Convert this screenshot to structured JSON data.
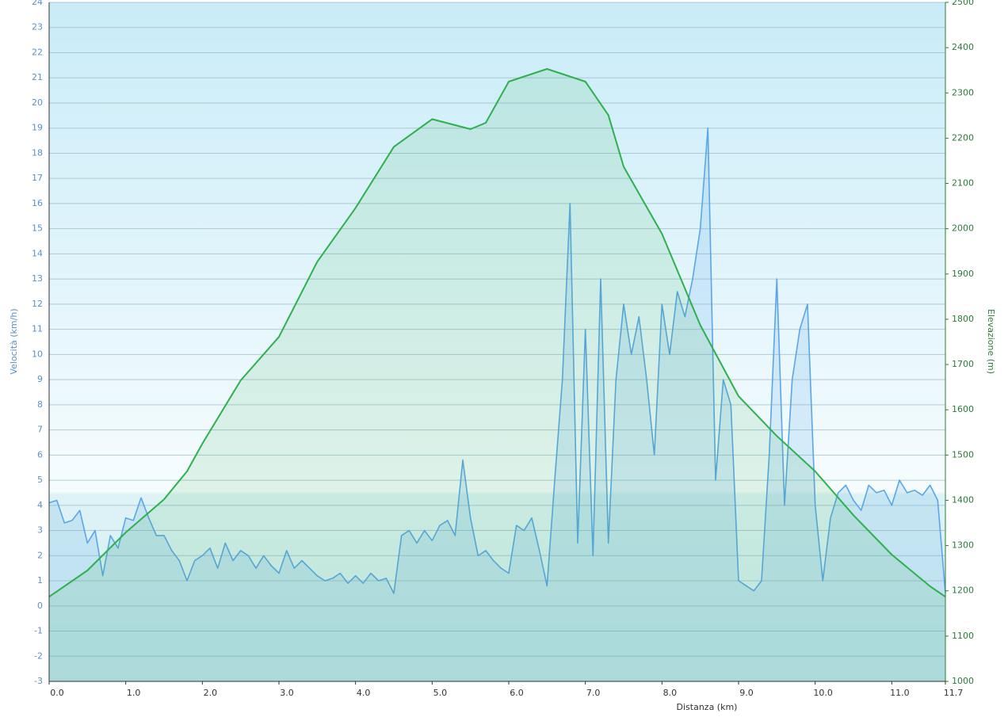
{
  "chart_data": {
    "type": "line",
    "xlabel": "Distanza  (km)",
    "ylabel": "Velocità (km/h)",
    "y2label": "Elevazione (m)",
    "xlim": [
      0,
      11.7
    ],
    "xticks": [
      {
        "value": 0,
        "label": "0.0"
      },
      {
        "value": 1,
        "label": "1.0"
      },
      {
        "value": 2,
        "label": "2.0"
      },
      {
        "value": 3,
        "label": "3.0"
      },
      {
        "value": 4,
        "label": "4.0"
      },
      {
        "value": 5,
        "label": "5.0"
      },
      {
        "value": 6,
        "label": "6.0"
      },
      {
        "value": 7,
        "label": "7.0"
      },
      {
        "value": 8,
        "label": "8.0"
      },
      {
        "value": 9,
        "label": "9.0"
      },
      {
        "value": 10,
        "label": "10.0"
      },
      {
        "value": 11,
        "label": "11.0"
      },
      11.7
    ],
    "ylim": [
      -3,
      24
    ],
    "yticks": [
      -3,
      -2,
      -1,
      0,
      1,
      2,
      3,
      4,
      5,
      6,
      7,
      8,
      9,
      10,
      11,
      12,
      13,
      14,
      15,
      16,
      17,
      18,
      19,
      20,
      21,
      22,
      23,
      24
    ],
    "y2lim": [
      1000,
      2500
    ],
    "y2ticks": [
      1000,
      1100,
      1200,
      1300,
      1400,
      1500,
      1600,
      1700,
      1800,
      1900,
      2000,
      2100,
      2200,
      2300,
      2400,
      2500
    ],
    "grid": true,
    "series": [
      {
        "color": "#5aa6e8",
        "x": [
          0.0,
          0.1,
          0.2,
          0.3,
          0.4,
          0.5,
          0.6,
          0.7,
          0.8,
          0.9,
          1.0,
          1.1,
          1.2,
          1.3,
          1.4,
          1.5,
          1.6,
          1.7,
          1.8,
          1.9,
          2.0,
          2.1,
          2.2,
          2.3,
          2.4,
          2.5,
          2.6,
          2.7,
          2.8,
          2.9,
          3.0,
          3.1,
          3.2,
          3.3,
          3.4,
          3.5,
          3.6,
          3.7,
          3.8,
          3.9,
          4.0,
          4.1,
          4.2,
          4.3,
          4.4,
          4.5,
          4.6,
          4.7,
          4.8,
          4.9,
          5.0,
          5.1,
          5.2,
          5.3,
          5.4,
          5.5,
          5.6,
          5.7,
          5.8,
          5.9,
          6.0,
          6.1,
          6.2,
          6.3,
          6.4,
          6.5,
          6.6,
          6.7,
          6.8,
          6.9,
          7.0,
          7.1,
          7.2,
          7.3,
          7.4,
          7.5,
          7.6,
          7.7,
          7.8,
          7.9,
          8.0,
          8.1,
          8.2,
          8.3,
          8.4,
          8.5,
          8.6,
          8.7,
          8.8,
          8.9,
          9.0,
          9.1,
          9.2,
          9.3,
          9.4,
          9.5,
          9.6,
          9.7,
          9.8,
          9.9,
          10.0,
          10.1,
          10.2,
          10.3,
          10.4,
          10.5,
          10.6,
          10.7,
          10.8,
          10.9,
          11.0,
          11.1,
          11.2,
          11.3,
          11.4,
          11.5,
          11.6,
          11.7
        ],
        "values": [
          4.1,
          4.2,
          3.3,
          3.4,
          3.8,
          2.5,
          3.0,
          1.2,
          2.8,
          2.3,
          3.5,
          3.4,
          4.3,
          3.5,
          2.8,
          2.8,
          2.2,
          1.8,
          1.0,
          1.8,
          2.0,
          2.3,
          1.5,
          2.5,
          1.8,
          2.2,
          2.0,
          1.5,
          2.0,
          1.6,
          1.3,
          2.2,
          1.5,
          1.8,
          1.5,
          1.2,
          1.0,
          1.1,
          1.3,
          0.9,
          1.2,
          0.9,
          1.3,
          1.0,
          1.1,
          0.5,
          2.8,
          3.0,
          2.5,
          3.0,
          2.6,
          3.2,
          3.4,
          2.8,
          5.8,
          3.5,
          2.0,
          2.2,
          1.8,
          1.5,
          1.3,
          3.2,
          3.0,
          3.5,
          2.2,
          0.8,
          5.0,
          9.0,
          16.0,
          2.5,
          11.0,
          2.0,
          13.0,
          2.5,
          9.0,
          12.0,
          10.0,
          11.5,
          9.0,
          6.0,
          12.0,
          10.0,
          12.5,
          11.5,
          13.0,
          15.0,
          19.0,
          5.0,
          9.0,
          8.0,
          1.0,
          0.8,
          0.6,
          1.0,
          6.0,
          13.0,
          4.0,
          9.0,
          11.0,
          12.0,
          4.0,
          1.0,
          3.5,
          4.5,
          4.8,
          4.2,
          3.8,
          4.8,
          4.5,
          4.6,
          4.0,
          5.0,
          4.5,
          4.6,
          4.4,
          4.8,
          4.2,
          0.5
        ]
      },
      {
        "color": "#2eb04c",
        "axis": "y2",
        "x": [
          0,
          0.5,
          1.0,
          1.5,
          1.8,
          2.0,
          2.5,
          3.0,
          3.5,
          4.0,
          4.5,
          5.0,
          5.5,
          5.7,
          6.0,
          6.5,
          7.0,
          7.3,
          7.5,
          8.0,
          8.5,
          9.0,
          9.5,
          10.0,
          10.5,
          11.0,
          11.5,
          11.7
        ],
        "values": [
          1187,
          1245,
          1329,
          1402,
          1464,
          1525,
          1665,
          1761,
          1927,
          2046,
          2181,
          2242,
          2220,
          2234,
          2325,
          2353,
          2325,
          2251,
          2137,
          1989,
          1787,
          1630,
          1542,
          1464,
          1367,
          1280,
          1210,
          1187
        ]
      }
    ]
  }
}
